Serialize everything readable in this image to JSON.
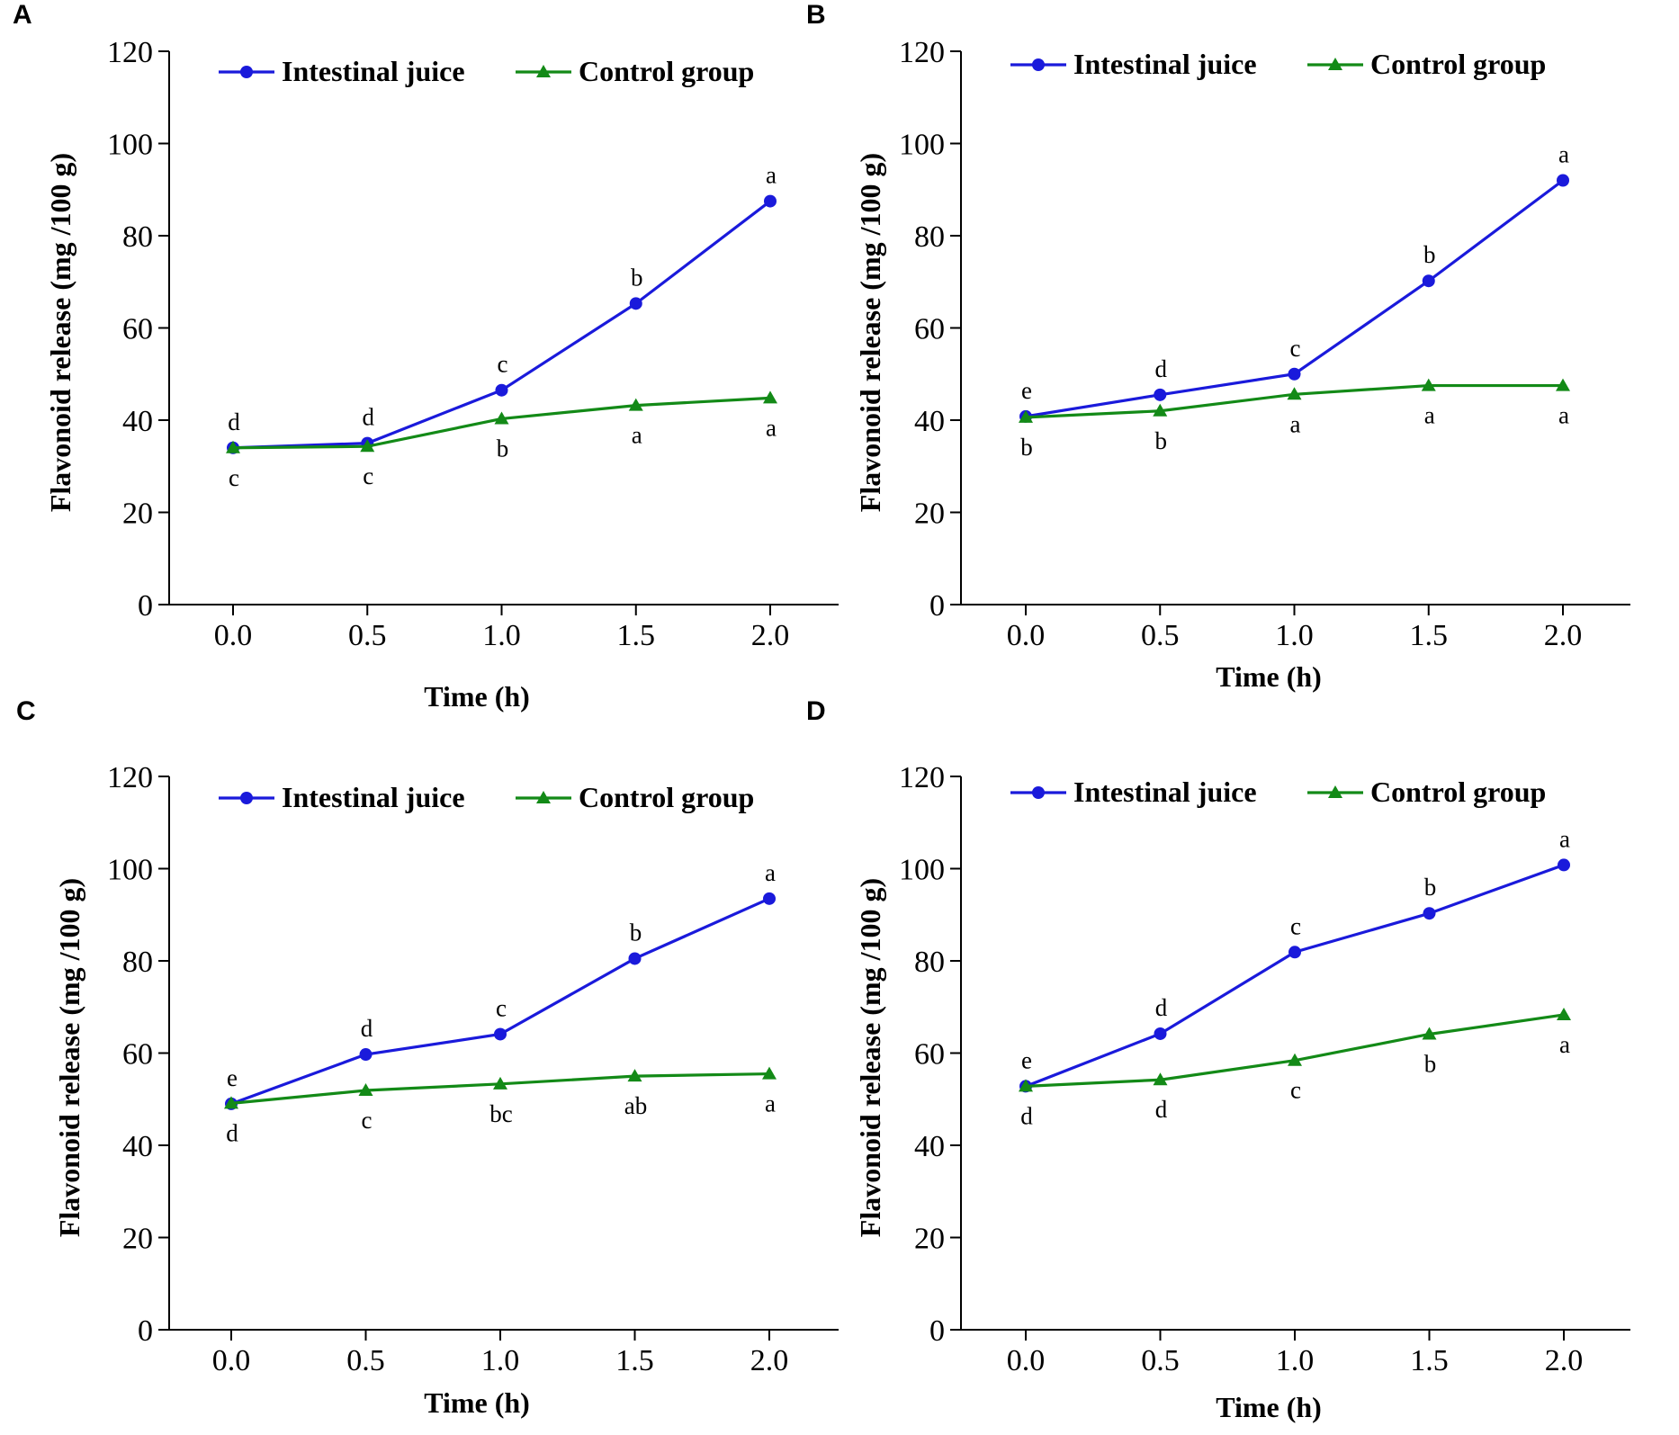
{
  "chart_data": [
    {
      "panel": "A",
      "type": "line",
      "xlabel": "Time (h)",
      "ylabel": "Flavonoid release (mg /100 g)",
      "ylim": [
        0,
        120
      ],
      "yticks": [
        "0",
        "20",
        "40",
        "60",
        "80",
        "100",
        "120"
      ],
      "x": [
        0.0,
        0.5,
        1.0,
        1.5,
        2.0
      ],
      "xtick_labels": [
        "0.0",
        "0.5",
        "1.0",
        "1.5",
        "2.0"
      ],
      "legend_position": "top",
      "series": [
        {
          "name": "Intestinal juice",
          "marker": "circle",
          "color": "#1a1adb",
          "values": [
            34,
            35,
            46.5,
            65.3,
            87.5
          ],
          "labels": [
            "d",
            "d",
            "c",
            "b",
            "a"
          ],
          "label_side": "above"
        },
        {
          "name": "Control group",
          "marker": "triangle",
          "color": "#138a17",
          "values": [
            34,
            34.3,
            40.3,
            43.2,
            44.8
          ],
          "labels": [
            "c",
            "c",
            "b",
            "a",
            "a"
          ],
          "label_side": "below"
        }
      ]
    },
    {
      "panel": "B",
      "type": "line",
      "xlabel": "Time (h)",
      "ylabel": "Flavonoid release (mg /100 g)",
      "ylim": [
        0,
        120
      ],
      "yticks": [
        "0",
        "20",
        "40",
        "60",
        "80",
        "100",
        "120"
      ],
      "x": [
        0.0,
        0.5,
        1.0,
        1.5,
        2.0
      ],
      "xtick_labels": [
        "0.0",
        "0.5",
        "1.0",
        "1.5",
        "2.0"
      ],
      "legend_position": "top",
      "series": [
        {
          "name": "Intestinal juice",
          "marker": "circle",
          "color": "#1a1adb",
          "values": [
            40.8,
            45.5,
            50,
            70.2,
            92
          ],
          "labels": [
            "e",
            "d",
            "c",
            "b",
            "a"
          ],
          "label_side": "above"
        },
        {
          "name": "Control group",
          "marker": "triangle",
          "color": "#138a17",
          "values": [
            40.6,
            42,
            45.6,
            47.5,
            47.5
          ],
          "labels": [
            "b",
            "b",
            "a",
            "a",
            "a"
          ],
          "label_side": "below"
        }
      ]
    },
    {
      "panel": "C",
      "type": "line",
      "xlabel": "Time (h)",
      "ylabel": "Flavonoid release (mg /100 g)",
      "ylim": [
        0,
        120
      ],
      "yticks": [
        "0",
        "20",
        "40",
        "60",
        "80",
        "100",
        "120"
      ],
      "x": [
        0.0,
        0.5,
        1.0,
        1.5,
        2.0
      ],
      "xtick_labels": [
        "0.0",
        "0.5",
        "1.0",
        "1.5",
        "2.0"
      ],
      "legend_position": "top",
      "series": [
        {
          "name": "Intestinal juice",
          "marker": "circle",
          "color": "#1a1adb",
          "values": [
            49,
            59.7,
            64.1,
            80.5,
            93.5
          ],
          "labels": [
            "e",
            "d",
            "c",
            "b",
            "a"
          ],
          "label_side": "above"
        },
        {
          "name": "Control group",
          "marker": "triangle",
          "color": "#138a17",
          "values": [
            49.1,
            51.9,
            53.3,
            55,
            55.5
          ],
          "labels": [
            "d",
            "c",
            "bc",
            "ab",
            "a"
          ],
          "label_side": "below"
        }
      ]
    },
    {
      "panel": "D",
      "type": "line",
      "xlabel": "Time (h)",
      "ylabel": "Flavonoid release (mg /100 g)",
      "ylim": [
        0,
        120
      ],
      "yticks": [
        "0",
        "20",
        "40",
        "60",
        "80",
        "100",
        "120"
      ],
      "x": [
        0.0,
        0.5,
        1.0,
        1.5,
        2.0
      ],
      "xtick_labels": [
        "0.0",
        "0.5",
        "1.0",
        "1.5",
        "2.0"
      ],
      "legend_position": "top",
      "series": [
        {
          "name": "Intestinal juice",
          "marker": "circle",
          "color": "#1a1adb",
          "values": [
            52.8,
            64.2,
            81.9,
            90.3,
            100.8
          ],
          "labels": [
            "e",
            "d",
            "c",
            "b",
            "a"
          ],
          "label_side": "above"
        },
        {
          "name": "Control group",
          "marker": "triangle",
          "color": "#138a17",
          "values": [
            52.8,
            54.2,
            58.4,
            64.1,
            68.3
          ],
          "labels": [
            "d",
            "d",
            "c",
            "b",
            "a"
          ],
          "label_side": "below"
        }
      ]
    }
  ]
}
